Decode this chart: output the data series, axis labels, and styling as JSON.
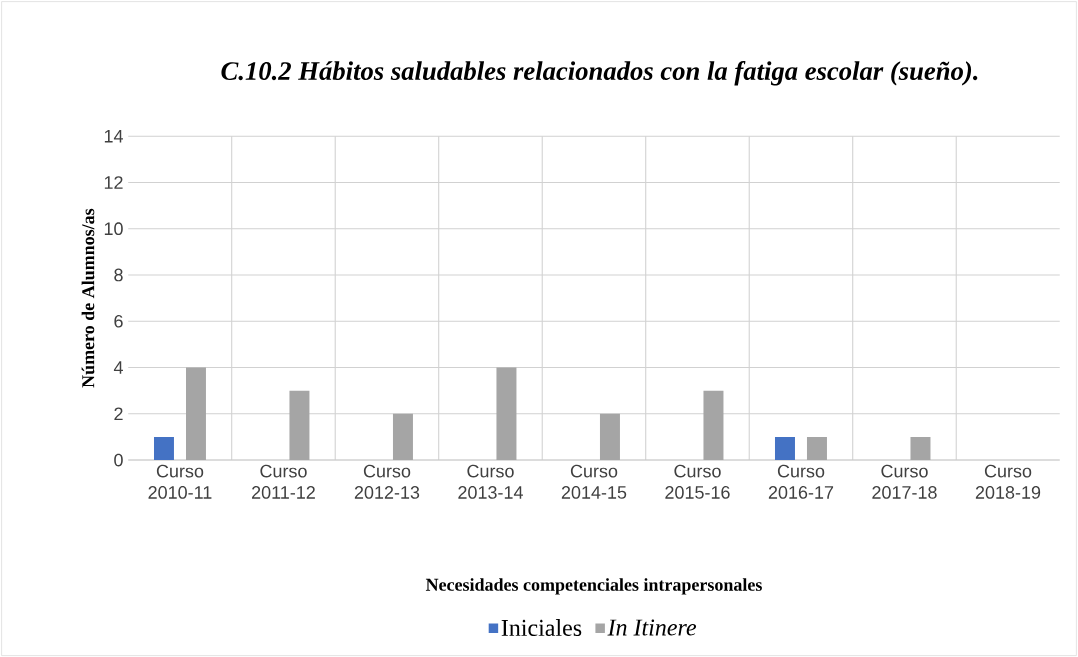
{
  "chart_data": {
    "type": "bar",
    "title": "C.10.2 Hábitos saludables relacionados con la fatiga escolar (sueño).",
    "xlabel": "Necesidades competenciales intrapersonales",
    "ylabel": "Número de Alumnos/as",
    "categories": [
      "Curso 2010-11",
      "Curso 2011-12",
      "Curso 2012-13",
      "Curso 2013-14",
      "Curso 2014-15",
      "Curso 2015-16",
      "Curso 2016-17",
      "Curso 2017-18",
      "Curso 2018-19"
    ],
    "series": [
      {
        "name": "Iniciales",
        "color": "#4472c4",
        "values": [
          1,
          0,
          0,
          0,
          0,
          0,
          1,
          0,
          0
        ]
      },
      {
        "name": "*In Itinere*",
        "color": "#a5a5a5",
        "values": [
          4,
          3,
          2,
          4,
          2,
          3,
          1,
          1,
          0
        ]
      }
    ],
    "ylim": [
      0,
      14
    ],
    "yticks": [
      0,
      2,
      4,
      6,
      8,
      10,
      12,
      14
    ],
    "grid": true,
    "legend": "bottom"
  }
}
